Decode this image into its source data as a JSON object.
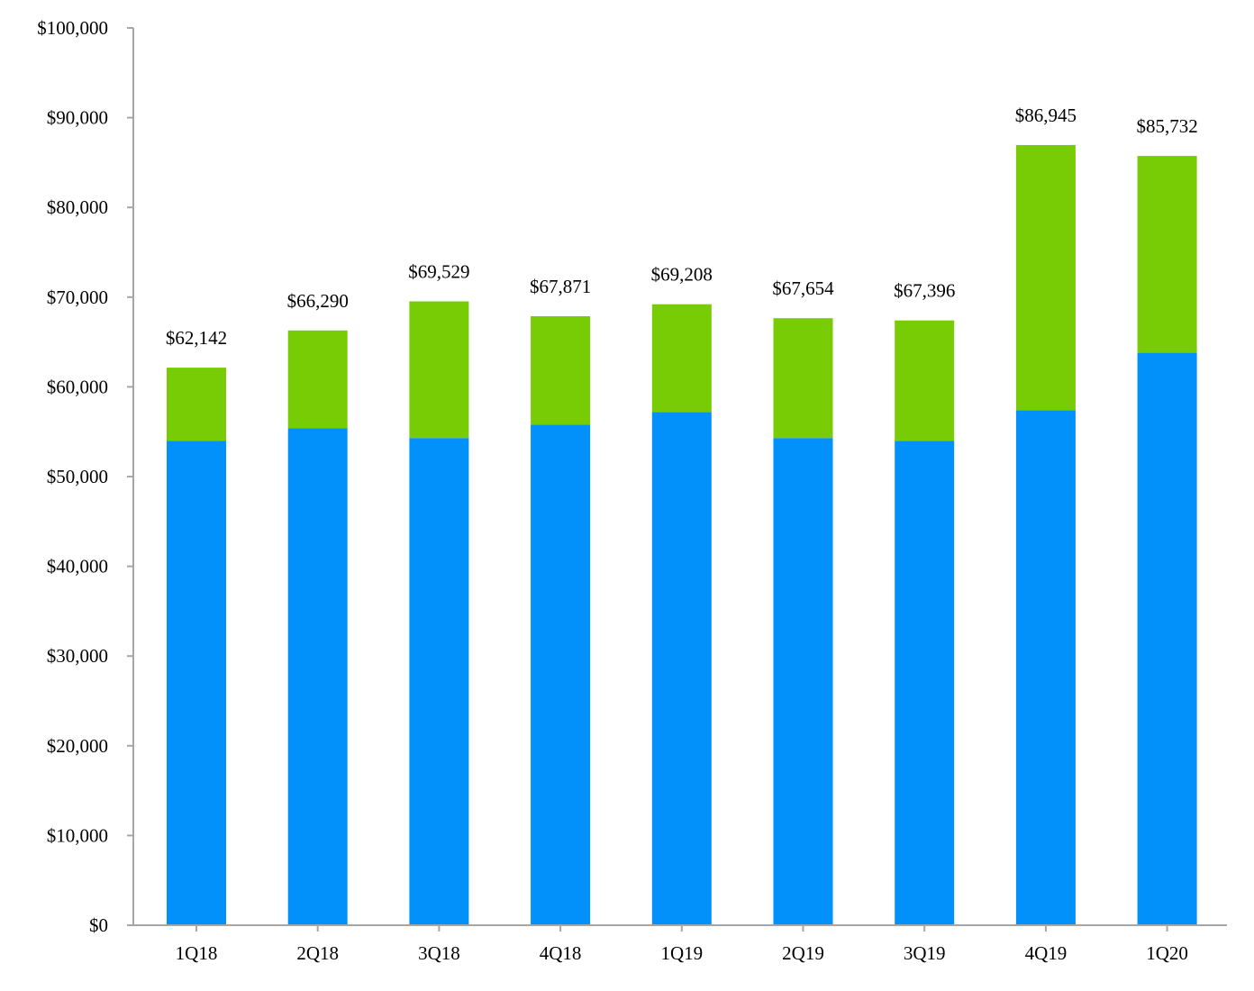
{
  "chart_data": {
    "type": "bar",
    "stacked": true,
    "title": "",
    "xlabel": "",
    "ylabel": "",
    "ylim": [
      0,
      100000
    ],
    "y_ticks": [
      0,
      10000,
      20000,
      30000,
      40000,
      50000,
      60000,
      70000,
      80000,
      90000,
      100000
    ],
    "y_tick_labels": [
      "$0",
      "$10,000",
      "$20,000",
      "$30,000",
      "$40,000",
      "$50,000",
      "$60,000",
      "$70,000",
      "$80,000",
      "$90,000",
      "$100,000"
    ],
    "grid": false,
    "legend": "none",
    "categories": [
      "1Q18",
      "2Q18",
      "3Q18",
      "4Q18",
      "1Q19",
      "2Q19",
      "3Q19",
      "4Q19",
      "1Q20"
    ],
    "series": [
      {
        "values": [
          54000,
          55400,
          54300,
          55800,
          57200,
          54300,
          54000,
          57400,
          63800
        ],
        "color": "#0291FB"
      },
      {
        "values": [
          8142,
          10890,
          15229,
          12071,
          12008,
          13354,
          13396,
          29545,
          21932
        ],
        "color": "#78CC06"
      }
    ],
    "totals": [
      62142,
      66290,
      69529,
      67871,
      69208,
      67654,
      67396,
      86945,
      85732
    ],
    "total_labels": [
      "$62,142",
      "$66,290",
      "$69,529",
      "$67,871",
      "$69,208",
      "$67,654",
      "$67,396",
      "$86,945",
      "$85,732"
    ],
    "axis_color": "#A6A6A6"
  }
}
